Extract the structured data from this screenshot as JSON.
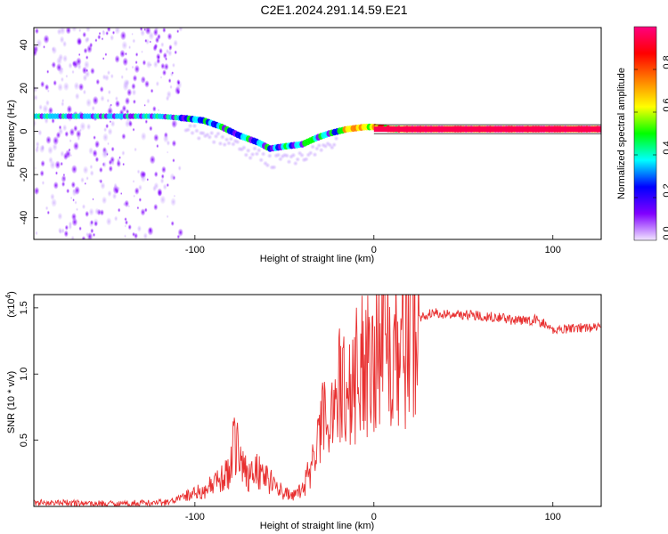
{
  "title": "C2E1.2024.291.14.59.E21",
  "chart_data": [
    {
      "type": "heatmap",
      "xlabel": "Height of straight line (km)",
      "ylabel": "Frequency (Hz)",
      "xlim": [
        -190,
        127
      ],
      "ylim": [
        -50,
        48
      ],
      "xticks": [
        -100,
        0,
        100
      ],
      "yticks": [
        -40,
        -20,
        0,
        20,
        40
      ],
      "colorbar": {
        "label": "Normalized spectral amplitude",
        "range": [
          0,
          1
        ],
        "ticks": [
          0.2,
          0.4,
          0.6,
          0.8
        ],
        "tick_labels": [
          "0.0",
          "0.2",
          "0.4",
          "0.6",
          "0.8"
        ],
        "tick_label_values": [
          0.0,
          0.2,
          0.4,
          0.6,
          0.8
        ],
        "colors": [
          "#f2e6ff",
          "#8000ff",
          "#0000ff",
          "#00ffff",
          "#00ff00",
          "#ffff00",
          "#ff8000",
          "#ff0000",
          "#ff0080"
        ]
      },
      "noise_region_x": [
        -190,
        -108
      ],
      "ridge": {
        "x": [
          -190,
          -150,
          -120,
          -105,
          -95,
          -85,
          -75,
          -65,
          -58,
          -50,
          -40,
          -32,
          -25,
          -15,
          -5,
          0,
          10,
          30,
          60,
          90,
          100,
          127
        ],
        "y": [
          7,
          7,
          7,
          6,
          5,
          2,
          -2,
          -5,
          -8,
          -7,
          -6,
          -3,
          -1,
          1,
          2,
          2,
          1,
          1,
          1,
          1,
          1,
          1
        ]
      }
    },
    {
      "type": "line",
      "xlabel": "Height of straight line (km)",
      "ylabel": "SNR (10 * v/v)",
      "y_multiplier": "(x10",
      "y_multiplier_exp": "4",
      "y_multiplier_close": ")",
      "xlim": [
        -190,
        127
      ],
      "ylim": [
        0,
        16000
      ],
      "xticks": [
        -100,
        0,
        100
      ],
      "yticks": [
        5000,
        10000,
        15000
      ],
      "ytick_labels": [
        "0.5",
        "1.0",
        "1.5"
      ],
      "color": "#e83030",
      "series": [
        {
          "x": [
            -190,
            -150,
            -115,
            -105,
            -95,
            -85,
            -80,
            -78,
            -75,
            -70,
            -65,
            -60,
            -55,
            -50,
            -45,
            -40,
            -35,
            -30,
            -25,
            -20,
            -15,
            -10,
            -5,
            0,
            5,
            10,
            15,
            20,
            25,
            30,
            35,
            40,
            50,
            60,
            70,
            80,
            90,
            95,
            100,
            110,
            127
          ],
          "y": [
            300,
            200,
            300,
            800,
            1200,
            2000,
            2800,
            5800,
            3200,
            2500,
            2800,
            2200,
            1500,
            1000,
            800,
            1200,
            3000,
            5500,
            7500,
            9000,
            8500,
            10000,
            11000,
            12500,
            12500,
            13500,
            12000,
            13500,
            14200,
            14500,
            14600,
            14500,
            14500,
            14400,
            14300,
            14000,
            14100,
            13800,
            13300,
            13500,
            13500
          ]
        }
      ]
    }
  ]
}
